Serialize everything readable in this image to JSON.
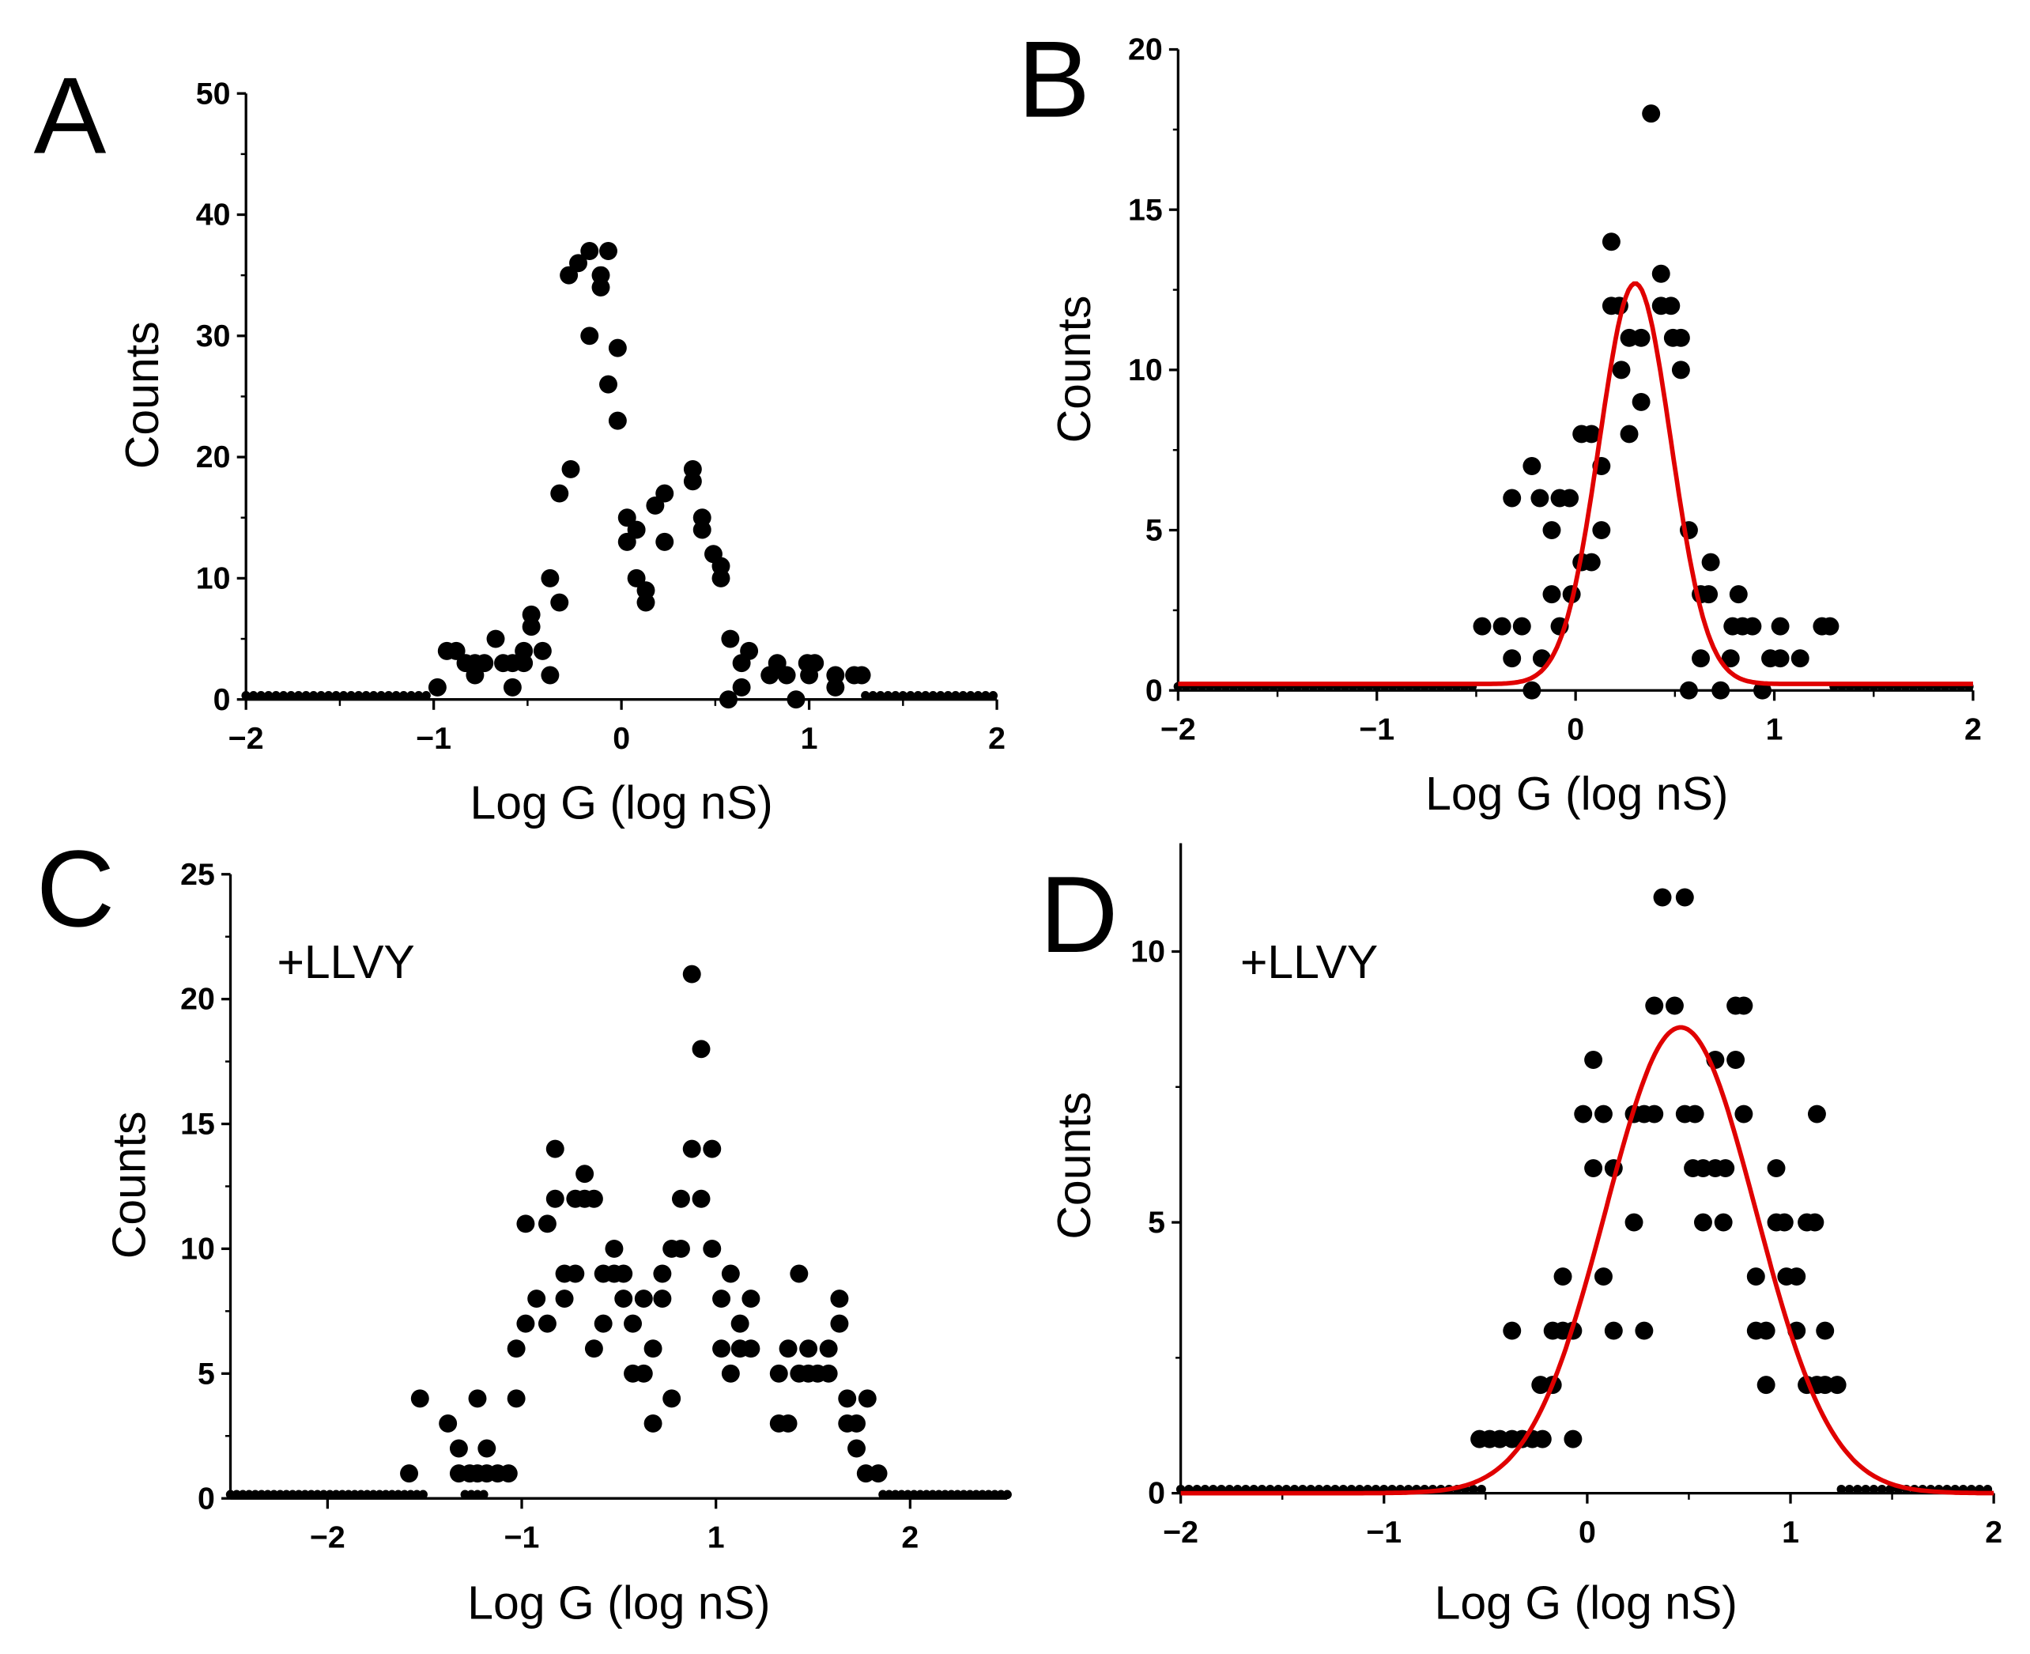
{
  "colors": {
    "points": "#000000",
    "fit": "#e00000",
    "axis": "#000000"
  },
  "chart_data": [
    {
      "panel": "A",
      "type": "scatter",
      "annotation": "",
      "xlabel": "Log G (log nS)",
      "ylabel": "Counts",
      "xlim": [
        -2,
        2
      ],
      "ylim": [
        0,
        50
      ],
      "xticks": [
        {
          "v": -2,
          "label": "−2"
        },
        {
          "v": -1,
          "label": "−1"
        },
        {
          "v": 0,
          "label": "0"
        },
        {
          "v": 1,
          "label": "1"
        },
        {
          "v": 2,
          "label": "2"
        }
      ],
      "xminor": [
        -1.5,
        -0.5,
        0.5,
        1.5
      ],
      "yticks": [
        {
          "v": 0,
          "label": "0"
        },
        {
          "v": 10,
          "label": "10"
        },
        {
          "v": 20,
          "label": "20"
        },
        {
          "v": 30,
          "label": "30"
        },
        {
          "v": 40,
          "label": "40"
        },
        {
          "v": 50,
          "label": "50"
        }
      ],
      "zero_runs": [
        [
          -2,
          -1.04
        ],
        [
          1.3,
          2
        ]
      ],
      "zero_step": 0.04,
      "points": [
        [
          -0.98,
          1
        ],
        [
          -0.93,
          4
        ],
        [
          -0.88,
          4
        ],
        [
          -0.83,
          3
        ],
        [
          -0.78,
          2
        ],
        [
          -0.78,
          3
        ],
        [
          -0.73,
          3
        ],
        [
          -0.67,
          5
        ],
        [
          -0.63,
          3
        ],
        [
          -0.58,
          1
        ],
        [
          -0.58,
          3
        ],
        [
          -0.52,
          4
        ],
        [
          -0.52,
          3
        ],
        [
          -0.48,
          7
        ],
        [
          -0.48,
          6
        ],
        [
          -0.42,
          4
        ],
        [
          -0.38,
          2
        ],
        [
          -0.38,
          10
        ],
        [
          -0.33,
          8
        ],
        [
          -0.33,
          17
        ],
        [
          -0.27,
          19
        ],
        [
          -0.28,
          35
        ],
        [
          -0.23,
          36
        ],
        [
          -0.17,
          37
        ],
        [
          -0.17,
          30
        ],
        [
          -0.11,
          35
        ],
        [
          -0.11,
          34
        ],
        [
          -0.07,
          37
        ],
        [
          -0.07,
          26
        ],
        [
          -0.02,
          29
        ],
        [
          -0.02,
          23
        ],
        [
          0.03,
          15
        ],
        [
          0.03,
          13
        ],
        [
          0.08,
          14
        ],
        [
          0.08,
          10
        ],
        [
          0.13,
          9
        ],
        [
          0.13,
          8
        ],
        [
          0.18,
          16
        ],
        [
          0.23,
          17
        ],
        [
          0.23,
          13
        ],
        [
          0.38,
          19
        ],
        [
          0.38,
          18
        ],
        [
          0.43,
          15
        ],
        [
          0.43,
          14
        ],
        [
          0.49,
          12
        ],
        [
          0.53,
          11
        ],
        [
          0.53,
          10
        ],
        [
          0.57,
          0
        ],
        [
          0.58,
          5
        ],
        [
          0.64,
          3
        ],
        [
          0.64,
          1
        ],
        [
          0.68,
          4
        ],
        [
          0.79,
          2
        ],
        [
          0.83,
          3
        ],
        [
          0.88,
          2
        ],
        [
          0.93,
          0
        ],
        [
          0.99,
          3
        ],
        [
          1.0,
          2
        ],
        [
          1.03,
          3
        ],
        [
          1.14,
          2
        ],
        [
          1.14,
          1
        ],
        [
          1.24,
          2
        ],
        [
          1.28,
          2
        ]
      ],
      "fit": null
    },
    {
      "panel": "B",
      "type": "scatter",
      "annotation": "",
      "xlabel": "Log G (log nS)",
      "ylabel": "Counts",
      "xlim": [
        -2,
        2
      ],
      "ylim": [
        0,
        20
      ],
      "xticks": [
        {
          "v": -2,
          "label": "−2"
        },
        {
          "v": -1,
          "label": "−1"
        },
        {
          "v": 0,
          "label": "0"
        },
        {
          "v": 1,
          "label": "1"
        },
        {
          "v": 2,
          "label": "2"
        }
      ],
      "xminor": [
        -1.5,
        -0.5,
        0.5,
        1.5
      ],
      "yticks": [
        {
          "v": 0,
          "label": "0"
        },
        {
          "v": 5,
          "label": "5"
        },
        {
          "v": 10,
          "label": "10"
        },
        {
          "v": 15,
          "label": "15"
        },
        {
          "v": 20,
          "label": "20"
        }
      ],
      "zero_runs": [
        [
          -2,
          -0.5
        ],
        [
          1.3,
          2
        ]
      ],
      "zero_step": 0.04,
      "points": [
        [
          -0.22,
          0
        ],
        [
          0.57,
          0
        ],
        [
          0.73,
          0
        ],
        [
          0.94,
          0
        ],
        [
          -0.32,
          1
        ],
        [
          -0.17,
          1
        ],
        [
          0.63,
          1
        ],
        [
          0.78,
          1
        ],
        [
          0.98,
          1
        ],
        [
          1.03,
          1
        ],
        [
          1.13,
          1
        ],
        [
          -0.47,
          2
        ],
        [
          -0.37,
          2
        ],
        [
          -0.27,
          2
        ],
        [
          -0.08,
          2
        ],
        [
          0.79,
          2
        ],
        [
          0.84,
          2
        ],
        [
          0.89,
          2
        ],
        [
          1.03,
          2
        ],
        [
          1.24,
          2
        ],
        [
          1.28,
          2
        ],
        [
          -0.12,
          3
        ],
        [
          -0.02,
          3
        ],
        [
          0.63,
          3
        ],
        [
          0.67,
          3
        ],
        [
          0.82,
          3
        ],
        [
          0.03,
          4
        ],
        [
          0.08,
          4
        ],
        [
          0.68,
          4
        ],
        [
          -0.12,
          5
        ],
        [
          0.13,
          5
        ],
        [
          0.57,
          5
        ],
        [
          -0.32,
          6
        ],
        [
          -0.18,
          6
        ],
        [
          -0.08,
          6
        ],
        [
          -0.03,
          6
        ],
        [
          -0.22,
          7
        ],
        [
          0.13,
          7
        ],
        [
          0.03,
          8
        ],
        [
          0.08,
          8
        ],
        [
          0.27,
          8
        ],
        [
          0.33,
          9
        ],
        [
          0.23,
          10
        ],
        [
          0.53,
          10
        ],
        [
          0.27,
          11
        ],
        [
          0.33,
          11
        ],
        [
          0.49,
          11
        ],
        [
          0.53,
          11
        ],
        [
          0.18,
          12
        ],
        [
          0.22,
          12
        ],
        [
          0.43,
          12
        ],
        [
          0.48,
          12
        ],
        [
          0.43,
          13
        ],
        [
          0.18,
          14
        ],
        [
          0.38,
          18
        ]
      ],
      "fit": {
        "model": "gaussian",
        "y0": 0.2,
        "xc": 0.3,
        "peak": 12.5,
        "sigma": 0.18
      }
    },
    {
      "panel": "C",
      "type": "scatter",
      "annotation": "+LLVY",
      "xlabel": "Log G (log nS)",
      "ylabel": "Counts",
      "xlim": [
        -2.5,
        2.5
      ],
      "ylim": [
        0,
        25
      ],
      "xticks": [
        {
          "v": -1.875,
          "label": "−2"
        },
        {
          "v": -0.625,
          "label": "−1"
        },
        {
          "v": 0.625,
          "label": "1"
        },
        {
          "v": 1.875,
          "label": "2"
        }
      ],
      "xminor": [],
      "yticks": [
        {
          "v": 0,
          "label": "0"
        },
        {
          "v": 5,
          "label": "5"
        },
        {
          "v": 10,
          "label": "10"
        },
        {
          "v": 15,
          "label": "15"
        },
        {
          "v": 20,
          "label": "20"
        },
        {
          "v": 25,
          "label": "25"
        }
      ],
      "zero_runs": [
        [
          -2.5,
          -1.25
        ],
        [
          -0.99,
          -0.86
        ],
        [
          1.7,
          2.5
        ]
      ],
      "zero_step": 0.04,
      "points": [
        [
          -1.35,
          1
        ],
        [
          -1.28,
          4
        ],
        [
          -1.1,
          3
        ],
        [
          -1.03,
          2
        ],
        [
          -1.03,
          1
        ],
        [
          -0.96,
          1
        ],
        [
          -0.91,
          4
        ],
        [
          -0.91,
          1
        ],
        [
          -0.85,
          2
        ],
        [
          -0.85,
          1
        ],
        [
          -0.78,
          1
        ],
        [
          -0.71,
          1
        ],
        [
          -0.66,
          4
        ],
        [
          -0.66,
          6
        ],
        [
          -0.6,
          7
        ],
        [
          -0.6,
          11
        ],
        [
          -0.53,
          8
        ],
        [
          -0.46,
          7
        ],
        [
          -0.46,
          11
        ],
        [
          -0.41,
          12
        ],
        [
          -0.41,
          14
        ],
        [
          -0.35,
          8
        ],
        [
          -0.35,
          9
        ],
        [
          -0.28,
          9
        ],
        [
          -0.28,
          12
        ],
        [
          -0.22,
          13
        ],
        [
          -0.22,
          12
        ],
        [
          -0.16,
          6
        ],
        [
          -0.16,
          12
        ],
        [
          -0.1,
          9
        ],
        [
          -0.1,
          7
        ],
        [
          -0.03,
          10
        ],
        [
          -0.03,
          9
        ],
        [
          0.03,
          9
        ],
        [
          0.03,
          8
        ],
        [
          0.09,
          5
        ],
        [
          0.09,
          7
        ],
        [
          0.16,
          5
        ],
        [
          0.16,
          8
        ],
        [
          0.22,
          6
        ],
        [
          0.22,
          3
        ],
        [
          0.28,
          8
        ],
        [
          0.28,
          9
        ],
        [
          0.34,
          4
        ],
        [
          0.34,
          10
        ],
        [
          0.4,
          12
        ],
        [
          0.4,
          10
        ],
        [
          0.47,
          21
        ],
        [
          0.47,
          14
        ],
        [
          0.53,
          18
        ],
        [
          0.53,
          12
        ],
        [
          0.6,
          14
        ],
        [
          0.6,
          10
        ],
        [
          0.66,
          8
        ],
        [
          0.66,
          6
        ],
        [
          0.72,
          9
        ],
        [
          0.72,
          5
        ],
        [
          0.78,
          7
        ],
        [
          0.78,
          6
        ],
        [
          0.85,
          6
        ],
        [
          0.85,
          8
        ],
        [
          1.03,
          5
        ],
        [
          1.03,
          3
        ],
        [
          1.09,
          3
        ],
        [
          1.09,
          6
        ],
        [
          1.16,
          9
        ],
        [
          1.16,
          5
        ],
        [
          1.22,
          6
        ],
        [
          1.22,
          5
        ],
        [
          1.28,
          5
        ],
        [
          1.35,
          6
        ],
        [
          1.35,
          5
        ],
        [
          1.42,
          8
        ],
        [
          1.42,
          7
        ],
        [
          1.47,
          4
        ],
        [
          1.47,
          3
        ],
        [
          1.53,
          3
        ],
        [
          1.53,
          2
        ],
        [
          1.6,
          4
        ],
        [
          1.59,
          1
        ],
        [
          1.67,
          1
        ]
      ],
      "fit": null
    },
    {
      "panel": "D",
      "type": "scatter",
      "annotation": "+LLVY",
      "xlabel": "Log G (log nS)",
      "ylabel": "Counts",
      "xlim": [
        -2,
        2
      ],
      "ylim": [
        0,
        12
      ],
      "xticks": [
        {
          "v": -2,
          "label": "−2"
        },
        {
          "v": -1,
          "label": "−1"
        },
        {
          "v": 0,
          "label": "0"
        },
        {
          "v": 1,
          "label": "1"
        },
        {
          "v": 2,
          "label": "2"
        }
      ],
      "xminor": [
        -1.5,
        -0.5,
        0.5,
        1.5
      ],
      "yticks": [
        {
          "v": 0,
          "label": "0"
        },
        {
          "v": 5,
          "label": "5"
        },
        {
          "v": 10,
          "label": "10"
        }
      ],
      "zero_runs": [
        [
          -2,
          -0.5
        ],
        [
          1.25,
          2
        ]
      ],
      "zero_step": 0.04,
      "points": [
        [
          -0.53,
          1
        ],
        [
          -0.48,
          1
        ],
        [
          -0.43,
          1
        ],
        [
          -0.37,
          1
        ],
        [
          -0.32,
          1
        ],
        [
          -0.27,
          1
        ],
        [
          -0.22,
          1
        ],
        [
          -0.07,
          1
        ],
        [
          -0.23,
          2
        ],
        [
          -0.17,
          2
        ],
        [
          0.88,
          2
        ],
        [
          1.08,
          2
        ],
        [
          1.13,
          2
        ],
        [
          1.17,
          2
        ],
        [
          1.23,
          2
        ],
        [
          -0.37,
          3
        ],
        [
          -0.17,
          3
        ],
        [
          -0.12,
          3
        ],
        [
          -0.07,
          3
        ],
        [
          0.13,
          3
        ],
        [
          0.28,
          3
        ],
        [
          0.83,
          3
        ],
        [
          0.88,
          3
        ],
        [
          1.03,
          3
        ],
        [
          1.17,
          3
        ],
        [
          -0.12,
          4
        ],
        [
          0.08,
          4
        ],
        [
          0.83,
          4
        ],
        [
          0.98,
          4
        ],
        [
          1.03,
          4
        ],
        [
          0.23,
          5
        ],
        [
          0.57,
          5
        ],
        [
          0.67,
          5
        ],
        [
          0.93,
          5
        ],
        [
          0.97,
          5
        ],
        [
          1.08,
          5
        ],
        [
          1.12,
          5
        ],
        [
          0.03,
          6
        ],
        [
          0.13,
          6
        ],
        [
          0.52,
          6
        ],
        [
          0.57,
          6
        ],
        [
          0.63,
          6
        ],
        [
          0.68,
          6
        ],
        [
          0.93,
          6
        ],
        [
          -0.02,
          7
        ],
        [
          0.08,
          7
        ],
        [
          0.23,
          7
        ],
        [
          0.28,
          7
        ],
        [
          0.33,
          7
        ],
        [
          0.48,
          7
        ],
        [
          0.53,
          7
        ],
        [
          0.77,
          7
        ],
        [
          1.13,
          7
        ],
        [
          0.03,
          8
        ],
        [
          0.63,
          8
        ],
        [
          0.73,
          8
        ],
        [
          0.33,
          9
        ],
        [
          0.43,
          9
        ],
        [
          0.73,
          9
        ],
        [
          0.77,
          9
        ],
        [
          0.37,
          11
        ],
        [
          0.48,
          11
        ]
      ],
      "fit": {
        "model": "gaussian",
        "y0": 0,
        "xc": 0.46,
        "peak": 8.6,
        "sigma": 0.37
      }
    }
  ]
}
